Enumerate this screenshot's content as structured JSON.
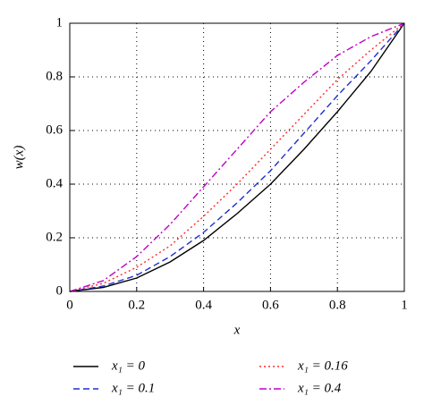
{
  "chart_data": {
    "type": "line",
    "x_label": "x",
    "y_label": "w(x)",
    "x": [
      0,
      0.1,
      0.2,
      0.3,
      0.4,
      0.5,
      0.6,
      0.7,
      0.8,
      0.9,
      1
    ],
    "series": [
      {
        "name": "x₁ = 0",
        "color": "#000000",
        "style": "solid",
        "values": [
          0,
          0.015,
          0.05,
          0.11,
          0.19,
          0.29,
          0.4,
          0.53,
          0.67,
          0.82,
          1
        ]
      },
      {
        "name": "x₁ = 0.1",
        "color": "#1f2fd0",
        "style": "dashed",
        "values": [
          0,
          0.02,
          0.06,
          0.13,
          0.22,
          0.33,
          0.45,
          0.59,
          0.73,
          0.86,
          1
        ]
      },
      {
        "name": "x₁ = 0.16",
        "color": "#ff2a2a",
        "style": "dotted",
        "values": [
          0,
          0.03,
          0.09,
          0.17,
          0.28,
          0.4,
          0.53,
          0.66,
          0.79,
          0.9,
          1
        ]
      },
      {
        "name": "x₁ = 0.4",
        "color": "#c000c8",
        "style": "dashdot",
        "values": [
          0,
          0.04,
          0.13,
          0.25,
          0.39,
          0.53,
          0.67,
          0.78,
          0.88,
          0.95,
          1
        ]
      }
    ],
    "xlim": [
      0,
      1
    ],
    "ylim": [
      0,
      1
    ],
    "xticks": [
      0,
      0.2,
      0.4,
      0.6,
      0.8,
      1
    ],
    "yticks": [
      0,
      0.2,
      0.4,
      0.6,
      0.8,
      1
    ],
    "grid": true
  }
}
